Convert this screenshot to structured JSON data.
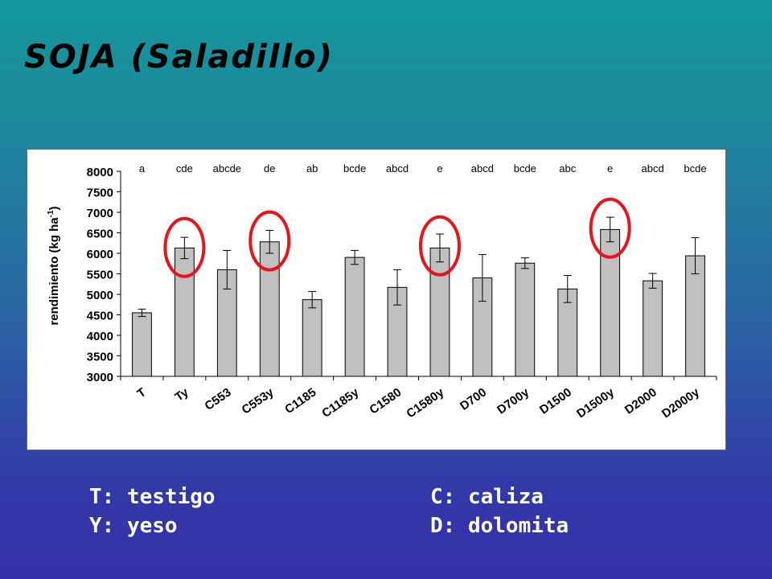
{
  "slide": {
    "title": "SOJA (Saladillo)"
  },
  "legend": {
    "left": [
      "T: testigo",
      "Y: yeso"
    ],
    "right": [
      "C: caliza",
      "D: dolomita"
    ]
  },
  "colors": {
    "bar": "#c0c0c0",
    "highlight_circle": "#e8141a",
    "background_top": "#14979c",
    "background_bottom": "#3630aa"
  },
  "chart_data": {
    "type": "bar",
    "ylabel": "rendimiento (kg ha-1)",
    "ylabel_main": "rendimiento (kg ha",
    "ylabel_sup": "-1",
    "ylabel_close": ")",
    "ylim": [
      3000,
      8000
    ],
    "yticks": [
      3000,
      3500,
      4000,
      4500,
      5000,
      5500,
      6000,
      6500,
      7000,
      7500,
      8000
    ],
    "categories": [
      "T",
      "Ty",
      "C553",
      "C553y",
      "C1185",
      "C1185y",
      "C1580",
      "C1580y",
      "D700",
      "D700y",
      "D1500",
      "D1500y",
      "D2000",
      "D2000y"
    ],
    "values": [
      4550,
      6130,
      5600,
      6280,
      4870,
      5900,
      5170,
      6130,
      5400,
      5760,
      5130,
      6580,
      5330,
      5940
    ],
    "errors": [
      90,
      260,
      470,
      280,
      200,
      170,
      430,
      340,
      570,
      130,
      330,
      300,
      180,
      440
    ],
    "significance_letters": [
      "a",
      "cde",
      "abcde",
      "de",
      "ab",
      "bcde",
      "abcd",
      "e",
      "abcd",
      "bcde",
      "abc",
      "e",
      "abcd",
      "bcde"
    ],
    "highlighted": [
      "Ty",
      "C553y",
      "C1580y",
      "D1500y"
    ],
    "grid": false,
    "legend": "none"
  }
}
